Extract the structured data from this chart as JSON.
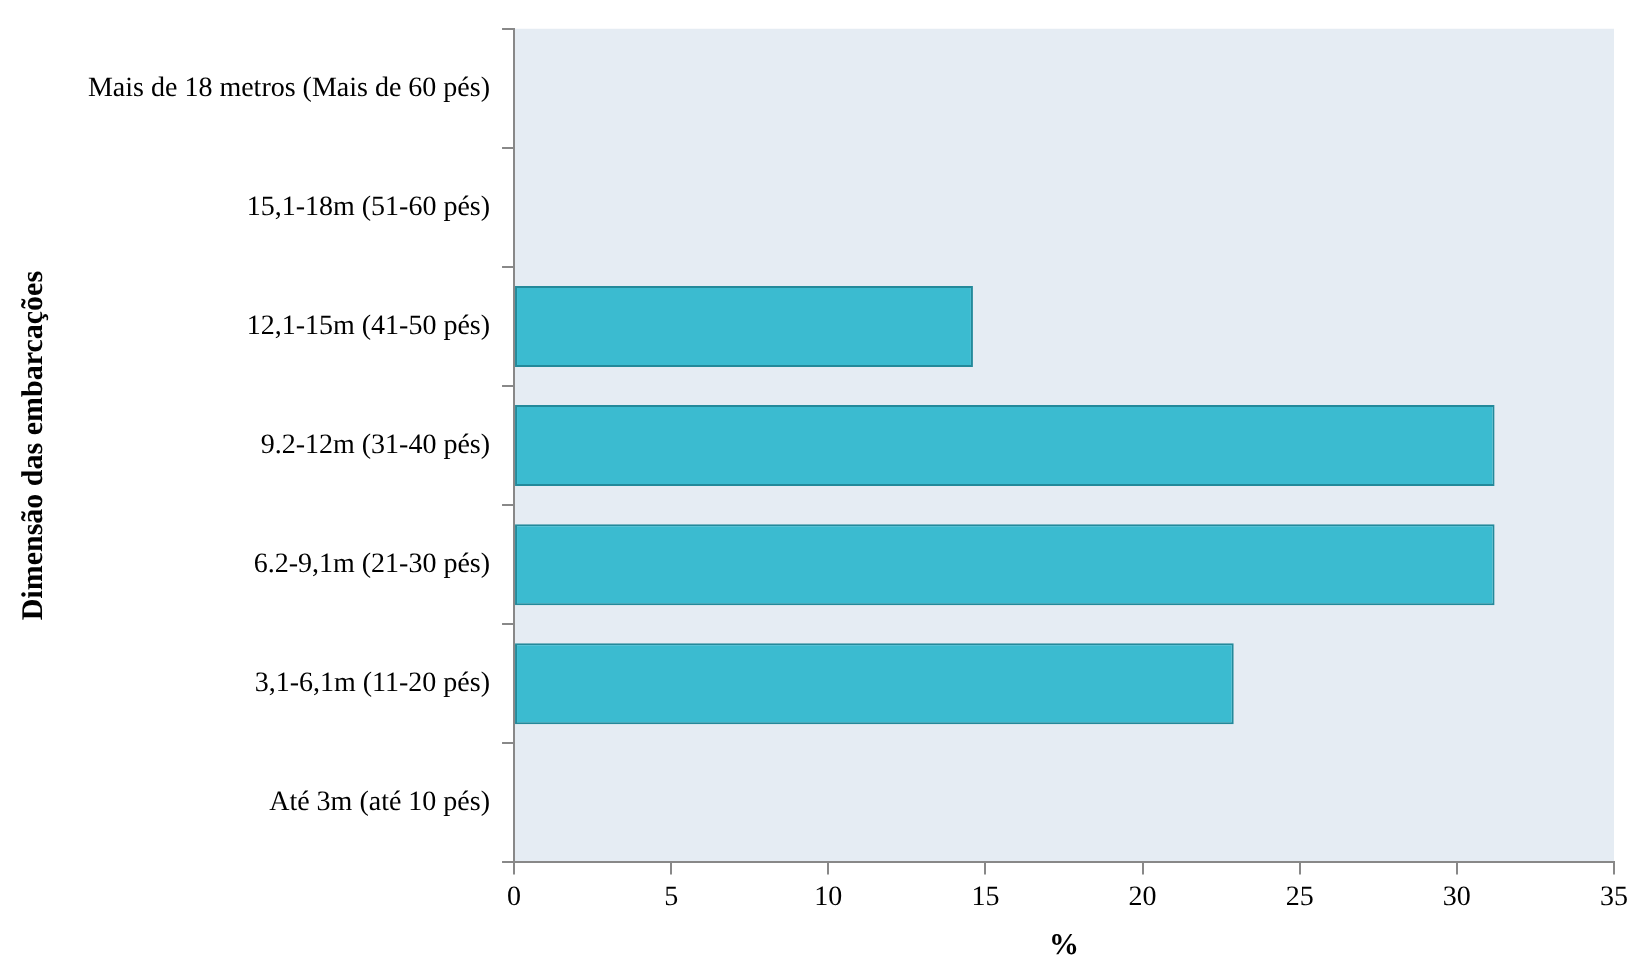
{
  "chart_data": {
    "type": "bar",
    "orientation": "horizontal",
    "ylabel": "Dimensão das embarcações",
    "xlabel": "%",
    "categories": [
      "Mais de 18 metros (Mais de 60 pés)",
      "15,1-18m (51-60 pés)",
      "12,1-15m (41-50 pés)",
      "9.2-12m (31-40 pés)",
      "6.2-9,1m (21-30 pés)",
      "3,1-6,1m (11-20 pés)",
      "Até 3m (até 10 pés)"
    ],
    "values": [
      0,
      0,
      14.6,
      31.2,
      31.2,
      22.9,
      0
    ],
    "color": "#3bbbd0",
    "xlim": [
      0,
      35
    ],
    "xticks": [
      0,
      5,
      10,
      15,
      20,
      25,
      30,
      35
    ],
    "grid": false,
    "legend": false
  }
}
